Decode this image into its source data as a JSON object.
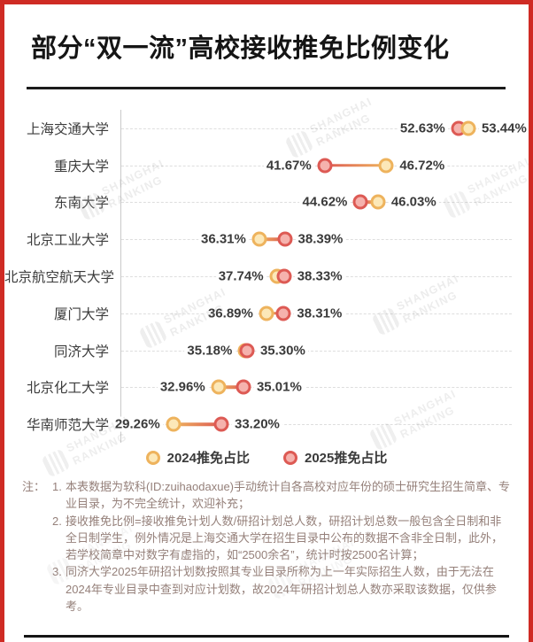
{
  "header": {
    "title": "部分“双一流”高校接收推免比例变化"
  },
  "chart_data": {
    "type": "dumbbell",
    "title": "部分“双一流”高校接收推免比例变化",
    "categories": [
      "上海交通大学",
      "重庆大学",
      "东南大学",
      "北京工业大学",
      "北京航空航天大学",
      "厦门大学",
      "同济大学",
      "北京化工大学",
      "华南师范大学"
    ],
    "series": [
      {
        "name": "2024推免占比",
        "ring": "#eeb35d",
        "fill": "#fce8b8",
        "values": [
          53.44,
          46.72,
          46.03,
          36.31,
          37.74,
          36.89,
          35.18,
          32.96,
          29.26
        ]
      },
      {
        "name": "2025推免占比",
        "ring": "#dd5a54",
        "fill": "#f5b2ad",
        "values": [
          52.63,
          41.67,
          44.62,
          38.39,
          38.33,
          38.31,
          35.3,
          35.01,
          33.2
        ]
      }
    ],
    "value_suffix": "%",
    "xlim": [
      25,
      57
    ],
    "grid": "dashed-horizontal",
    "legend_position": "bottom"
  },
  "notes": {
    "prefix": "注：",
    "items": [
      {
        "num": "1.",
        "text": "本表数据为软科(ID:zuihaodaxue)手动统计自各高校对应年份的硕士研究生招生简章、专业目录，为不完全统计，欢迎补充；"
      },
      {
        "num": "2.",
        "text": "接收推免比例=接收推免计划人数/研招计划总人数，研招计划总数一般包含全日制和非全日制学生，例外情况是上海交通大学在招生目录中公布的数据不含非全日制，此外，若学校简章中对数字有虚指的，如“2500余名”，统计时按2500名计算；"
      },
      {
        "num": "3.",
        "text": "同济大学2025年研招计划数按照其专业目录所称为上一年实际招生人数，由于无法在2024年专业目录中查到对应计划数，故2024年研招计划总人数亦采取该数据，仅供参考。"
      }
    ]
  },
  "watermark": {
    "line1": "SHANGHAI",
    "line2": "RANKING"
  },
  "colors": {
    "frame_border": "#cf2b24",
    "divider": "#1b1b1b",
    "axis_line": "#c9c9c9",
    "gridline": "#dedede",
    "category_label": "#3c3c3c",
    "value_label": "#3a3a3a",
    "note_text": "#95807a"
  }
}
